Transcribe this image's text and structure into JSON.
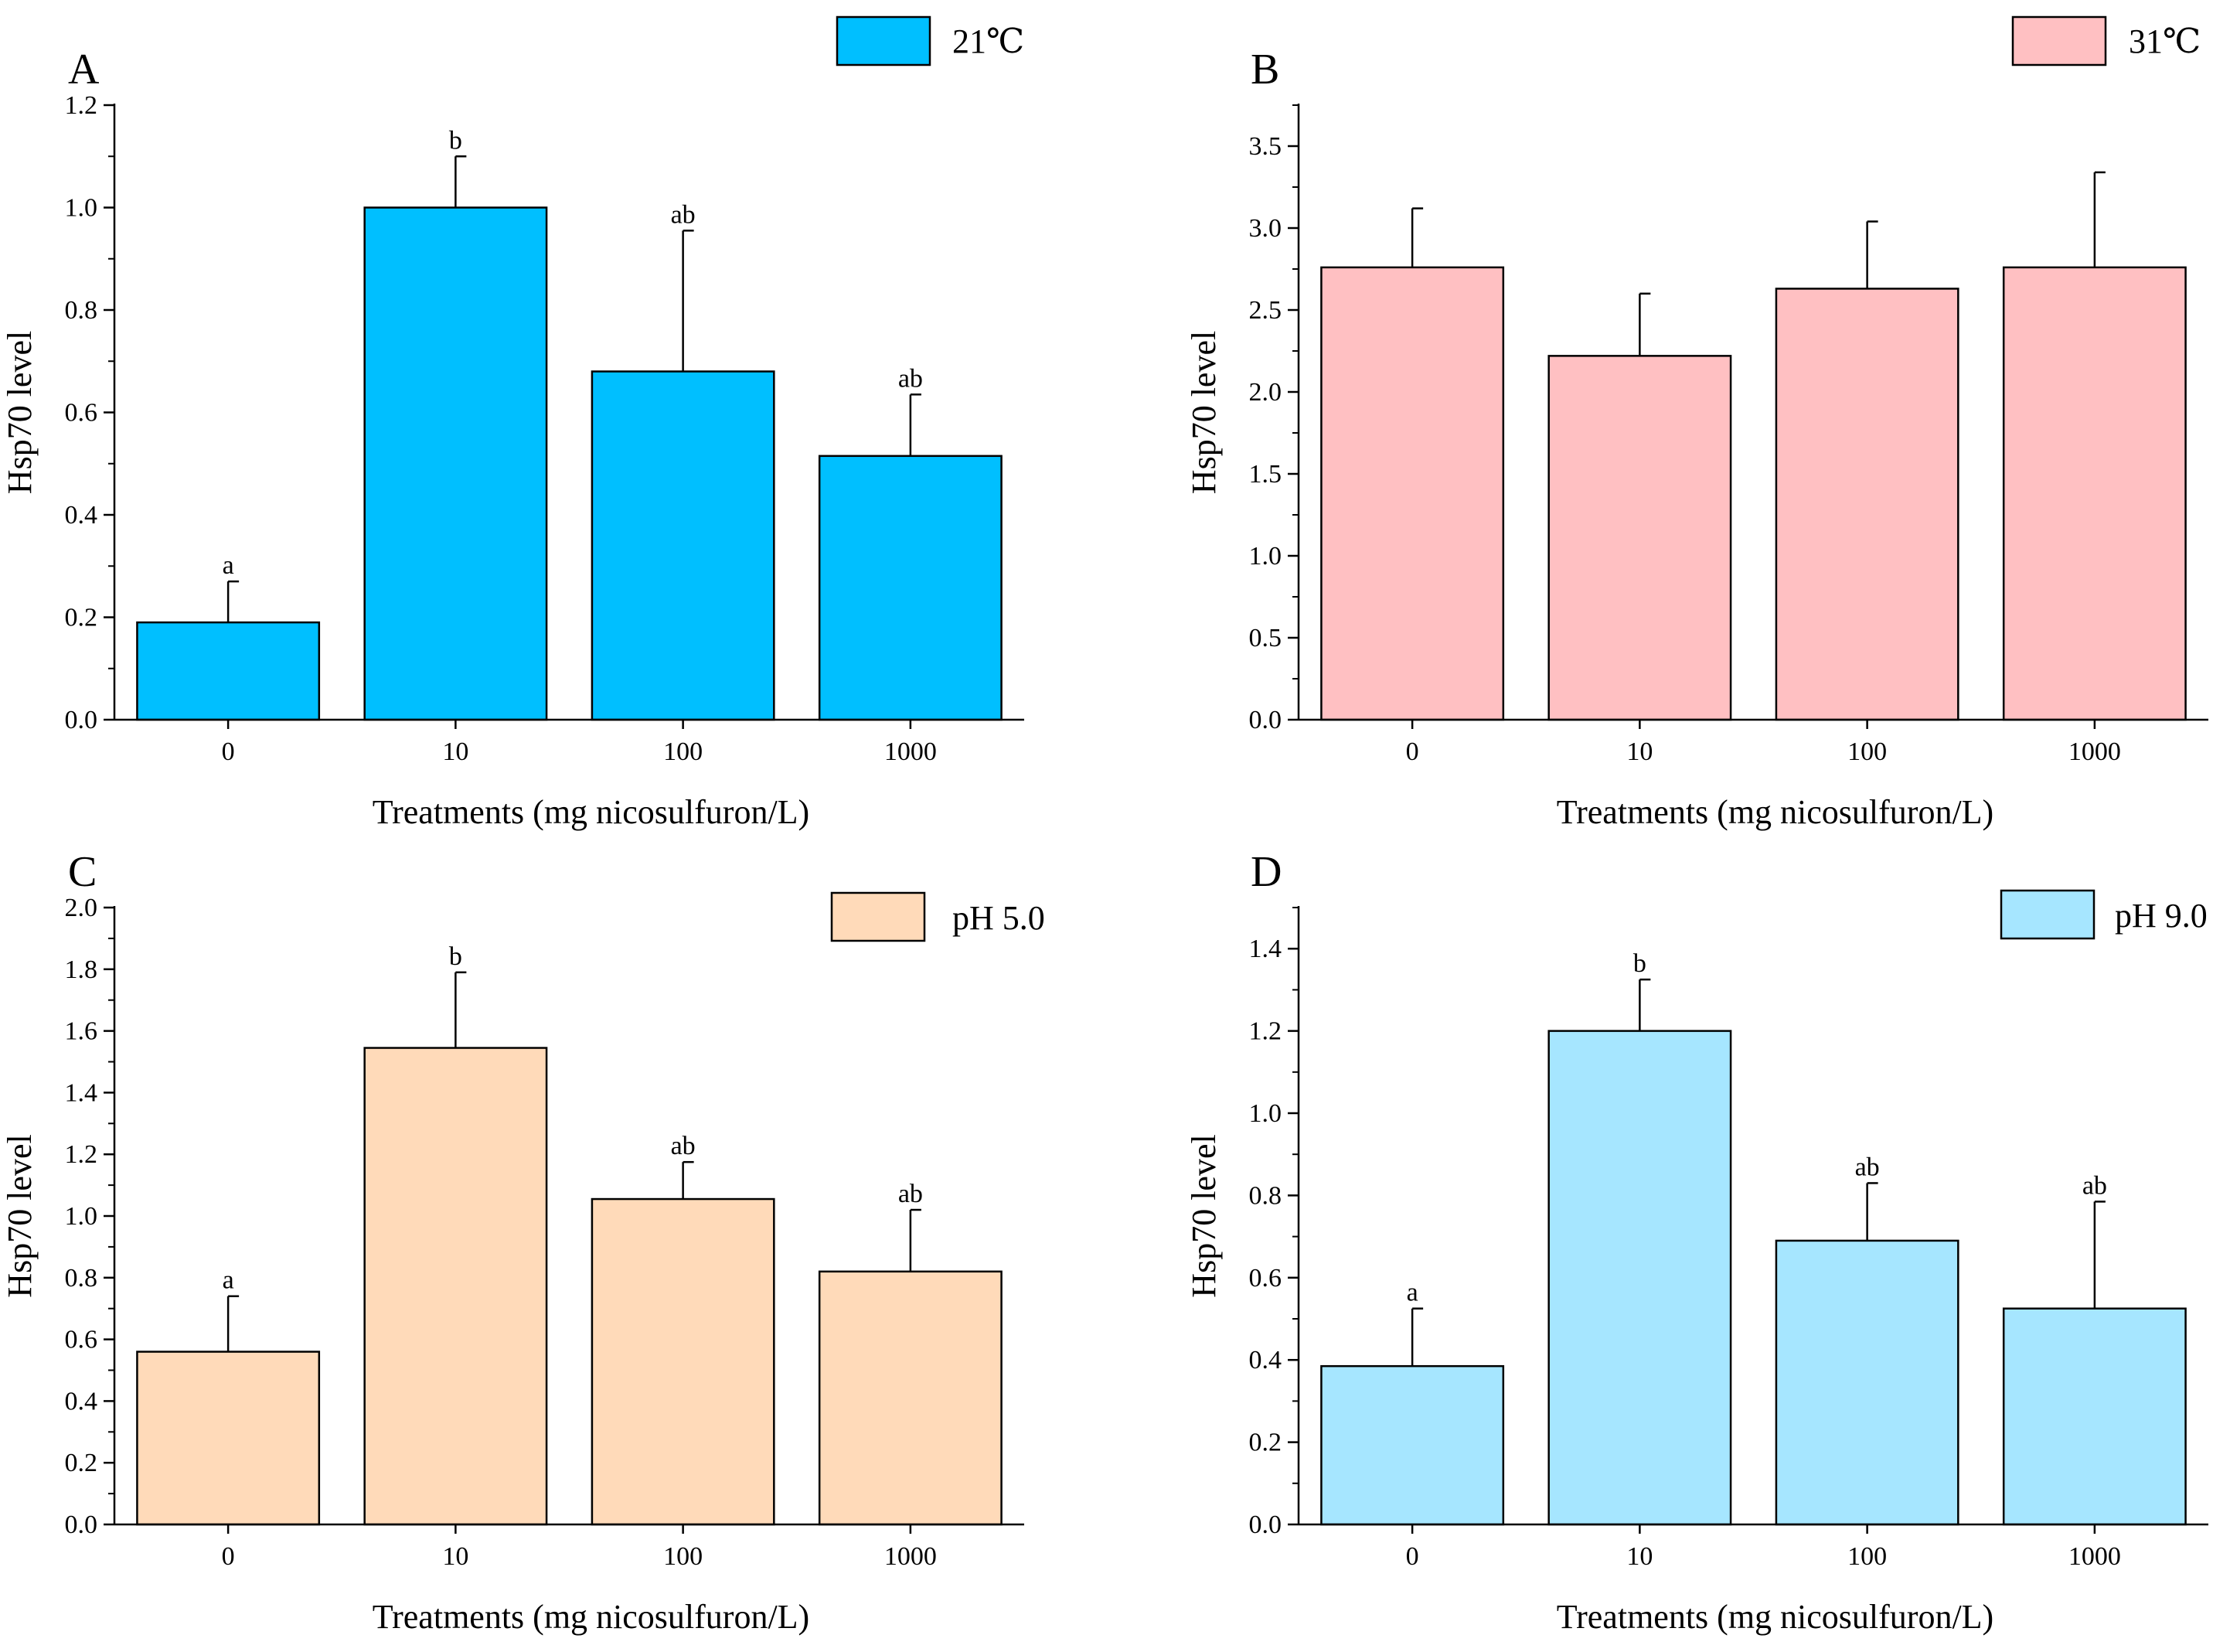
{
  "chart_data": [
    {
      "type": "bar",
      "panel": "A",
      "legend": "21℃",
      "color": "#00BFFF",
      "categories": [
        "0",
        "10",
        "100",
        "1000"
      ],
      "values": [
        0.19,
        1.0,
        0.68,
        0.515
      ],
      "errors": [
        0.08,
        0.1,
        0.275,
        0.12
      ],
      "significance": [
        "a",
        "b",
        "ab",
        "ab"
      ],
      "xlabel": "Treatments (mg nicosulfuron/L)",
      "ylabel": "Hsp70  level",
      "ylim": [
        0,
        1.2
      ],
      "yticks": [
        "0.0",
        "0.2",
        "0.4",
        "0.6",
        "0.8",
        "1.0",
        "1.2"
      ],
      "ytick_step": 0.2,
      "grid": false
    },
    {
      "type": "bar",
      "panel": "B",
      "legend": "31℃",
      "color": "#FFC0C2",
      "categories": [
        "0",
        "10",
        "100",
        "1000"
      ],
      "values": [
        2.76,
        2.22,
        2.63,
        2.76
      ],
      "errors": [
        0.36,
        0.38,
        0.41,
        0.58
      ],
      "significance": [
        "",
        "",
        "",
        ""
      ],
      "xlabel": "Treatments (mg nicosulfuron/L)",
      "ylabel": "Hsp70 level",
      "ylim": [
        0,
        3.75
      ],
      "yticks": [
        "0.0",
        "0.5",
        "1.0",
        "1.5",
        "2.0",
        "2.5",
        "3.0",
        "3.5"
      ],
      "ytick_step": 0.5,
      "grid": false
    },
    {
      "type": "bar",
      "panel": "C",
      "legend": "pH 5.0",
      "color": "#FFDAB9",
      "categories": [
        "0",
        "10",
        "100",
        "1000"
      ],
      "values": [
        0.56,
        1.545,
        1.055,
        0.82
      ],
      "errors": [
        0.18,
        0.245,
        0.12,
        0.2
      ],
      "significance": [
        "a",
        "b",
        "ab",
        "ab"
      ],
      "xlabel": "Treatments (mg nicosulfuron/L)",
      "ylabel": "Hsp70  level",
      "ylim": [
        0,
        2.0
      ],
      "yticks": [
        "0.0",
        "0.2",
        "0.4",
        "0.6",
        "0.8",
        "1.0",
        "1.2",
        "1.4",
        "1.6",
        "1.8",
        "2.0"
      ],
      "ytick_step": 0.2,
      "grid": false
    },
    {
      "type": "bar",
      "panel": "D",
      "legend": "pH 9.0",
      "color": "#A6E6FF",
      "categories": [
        "0",
        "10",
        "100",
        "1000"
      ],
      "values": [
        0.385,
        1.2,
        0.69,
        0.525
      ],
      "errors": [
        0.14,
        0.125,
        0.14,
        0.26
      ],
      "significance": [
        "a",
        "b",
        "ab",
        "ab"
      ],
      "xlabel": "Treatments (mg nicosulfuron/L)",
      "ylabel": "Hsp70  level",
      "ylim": [
        0,
        1.5
      ],
      "yticks": [
        "0.0",
        "0.2",
        "0.4",
        "0.6",
        "0.8",
        "1.0",
        "1.2",
        "1.4"
      ],
      "ytick_step": 0.2,
      "grid": false
    }
  ]
}
